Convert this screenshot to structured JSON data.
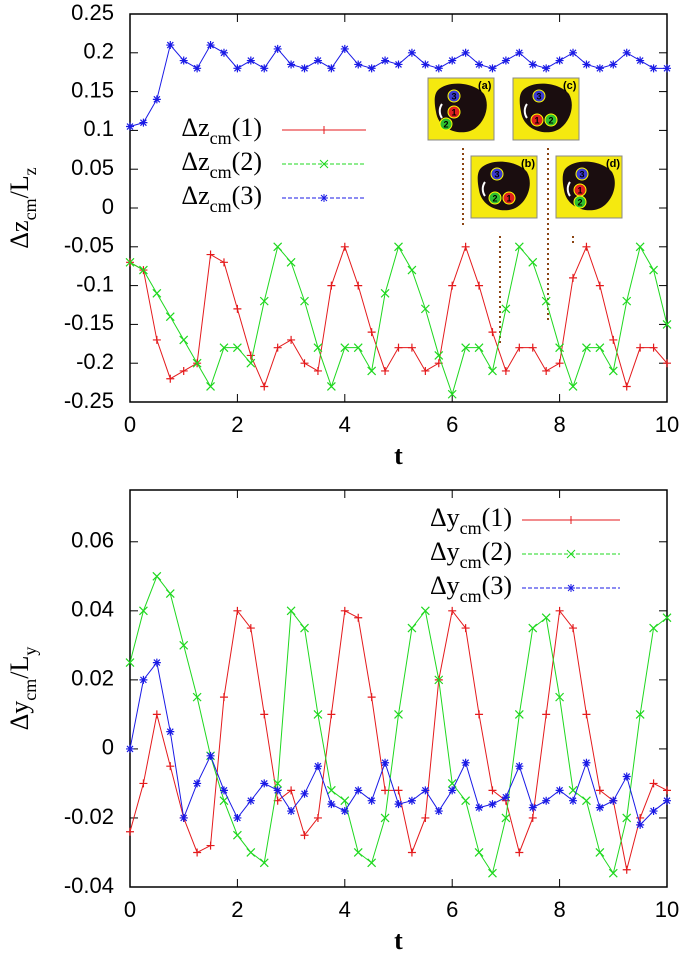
{
  "chart_data": [
    {
      "type": "line",
      "xlabel": "t",
      "ylabel": [
        "Δz",
        "cm",
        "/L",
        "z"
      ],
      "xlim": [
        0,
        10
      ],
      "xticks": [
        0,
        2,
        4,
        6,
        8,
        10
      ],
      "ylim": [
        -0.25,
        0.25
      ],
      "yticks": [
        -0.25,
        -0.2,
        -0.15,
        -0.1,
        -0.05,
        0,
        0.05,
        0.1,
        0.15,
        0.2,
        0.25
      ],
      "legend": "upper left",
      "x": [
        0,
        0.25,
        0.5,
        0.75,
        1,
        1.25,
        1.5,
        1.75,
        2,
        2.25,
        2.5,
        2.75,
        3,
        3.25,
        3.5,
        3.75,
        4,
        4.25,
        4.5,
        4.75,
        5,
        5.25,
        5.5,
        5.75,
        6,
        6.25,
        6.5,
        6.75,
        7,
        7.25,
        7.5,
        7.75,
        8,
        8.25,
        8.5,
        8.75,
        9,
        9.25,
        9.5,
        9.75,
        10
      ],
      "series": [
        {
          "name": [
            "Δz",
            "cm",
            "(1)"
          ],
          "color": "#e41a1c",
          "marker": "+",
          "values": [
            -0.07,
            -0.08,
            -0.17,
            -0.22,
            -0.21,
            -0.2,
            -0.06,
            -0.07,
            -0.13,
            -0.19,
            -0.23,
            -0.18,
            -0.17,
            -0.2,
            -0.21,
            -0.1,
            -0.05,
            -0.1,
            -0.16,
            -0.21,
            -0.18,
            -0.18,
            -0.21,
            -0.2,
            -0.1,
            -0.05,
            -0.1,
            -0.16,
            -0.21,
            -0.18,
            -0.18,
            -0.21,
            -0.2,
            -0.09,
            -0.05,
            -0.1,
            -0.17,
            -0.23,
            -0.18,
            -0.18,
            -0.2
          ]
        },
        {
          "name": [
            "Δz",
            "cm",
            "(2)"
          ],
          "color": "#1fd81f",
          "marker": "x",
          "values": [
            -0.07,
            -0.08,
            -0.11,
            -0.14,
            -0.17,
            -0.2,
            -0.23,
            -0.18,
            -0.18,
            -0.2,
            -0.12,
            -0.05,
            -0.07,
            -0.12,
            -0.18,
            -0.23,
            -0.18,
            -0.18,
            -0.21,
            -0.11,
            -0.05,
            -0.08,
            -0.13,
            -0.19,
            -0.24,
            -0.18,
            -0.18,
            -0.21,
            -0.13,
            -0.05,
            -0.07,
            -0.12,
            -0.18,
            -0.23,
            -0.18,
            -0.18,
            -0.21,
            -0.12,
            -0.05,
            -0.08,
            -0.15
          ]
        },
        {
          "name": [
            "Δz",
            "cm",
            "(3)"
          ],
          "color": "#1a1ae6",
          "marker": "*",
          "values": [
            0.105,
            0.11,
            0.14,
            0.21,
            0.19,
            0.18,
            0.21,
            0.2,
            0.18,
            0.19,
            0.18,
            0.205,
            0.185,
            0.18,
            0.19,
            0.18,
            0.205,
            0.185,
            0.18,
            0.19,
            0.185,
            0.2,
            0.185,
            0.18,
            0.19,
            0.2,
            0.185,
            0.18,
            0.19,
            0.2,
            0.185,
            0.18,
            0.19,
            0.2,
            0.185,
            0.18,
            0.185,
            0.2,
            0.19,
            0.18,
            0.18
          ]
        }
      ],
      "insets": [
        {
          "label": "(a)",
          "particles": [
            "3",
            "1",
            "2"
          ]
        },
        {
          "label": "(b)",
          "particles": [
            "3",
            "2",
            "1"
          ]
        },
        {
          "label": "(c)",
          "particles": [
            "3",
            "1",
            "2"
          ]
        },
        {
          "label": "(d)",
          "particles": [
            "3",
            "1",
            "2"
          ]
        }
      ]
    },
    {
      "type": "line",
      "xlabel": "t",
      "ylabel": [
        "Δy",
        "cm",
        "/L",
        "y"
      ],
      "xlim": [
        0,
        10
      ],
      "xticks": [
        0,
        2,
        4,
        6,
        8,
        10
      ],
      "ylim": [
        -0.04,
        0.075
      ],
      "yticks": [
        -0.04,
        -0.02,
        0,
        0.02,
        0.04,
        0.06
      ],
      "legend": "upper right",
      "x": [
        0,
        0.25,
        0.5,
        0.75,
        1,
        1.25,
        1.5,
        1.75,
        2,
        2.25,
        2.5,
        2.75,
        3,
        3.25,
        3.5,
        3.75,
        4,
        4.25,
        4.5,
        4.75,
        5,
        5.25,
        5.5,
        5.75,
        6,
        6.25,
        6.5,
        6.75,
        7,
        7.25,
        7.5,
        7.75,
        8,
        8.25,
        8.5,
        8.75,
        9,
        9.25,
        9.5,
        9.75,
        10
      ],
      "series": [
        {
          "name": [
            "Δy",
            "cm",
            "(1)"
          ],
          "color": "#e41a1c",
          "marker": "+",
          "values": [
            -0.024,
            -0.01,
            0.01,
            -0.005,
            -0.02,
            -0.03,
            -0.028,
            0.015,
            0.04,
            0.035,
            0.01,
            -0.015,
            -0.012,
            -0.025,
            -0.02,
            0.01,
            0.04,
            0.038,
            0.015,
            -0.012,
            -0.012,
            -0.03,
            -0.02,
            0.02,
            0.04,
            0.035,
            0.01,
            -0.012,
            -0.015,
            -0.03,
            -0.02,
            0.01,
            0.04,
            0.035,
            0.01,
            -0.012,
            -0.015,
            -0.035,
            -0.02,
            -0.01,
            -0.012
          ]
        },
        {
          "name": [
            "Δy",
            "cm",
            "(2)"
          ],
          "color": "#1fd81f",
          "marker": "x",
          "values": [
            0.025,
            0.04,
            0.05,
            0.045,
            0.03,
            0.015,
            -0.002,
            -0.015,
            -0.025,
            -0.03,
            -0.033,
            -0.01,
            0.04,
            0.035,
            0.01,
            -0.012,
            -0.015,
            -0.03,
            -0.033,
            -0.02,
            0.01,
            0.035,
            0.04,
            0.02,
            -0.01,
            -0.015,
            -0.03,
            -0.036,
            -0.02,
            0.01,
            0.035,
            0.038,
            0.015,
            -0.012,
            -0.015,
            -0.03,
            -0.036,
            -0.02,
            0.01,
            0.035,
            0.038
          ]
        },
        {
          "name": [
            "Δy",
            "cm",
            "(3)"
          ],
          "color": "#1a1ae6",
          "marker": "*",
          "values": [
            0,
            0.02,
            0.025,
            0.005,
            -0.02,
            -0.01,
            -0.002,
            -0.012,
            -0.02,
            -0.015,
            -0.01,
            -0.012,
            -0.018,
            -0.013,
            -0.005,
            -0.016,
            -0.018,
            -0.012,
            -0.015,
            -0.004,
            -0.016,
            -0.015,
            -0.012,
            -0.018,
            -0.012,
            -0.004,
            -0.017,
            -0.016,
            -0.014,
            -0.005,
            -0.017,
            -0.015,
            -0.012,
            -0.015,
            -0.004,
            -0.017,
            -0.015,
            -0.008,
            -0.022,
            -0.018,
            -0.015
          ]
        }
      ]
    }
  ]
}
